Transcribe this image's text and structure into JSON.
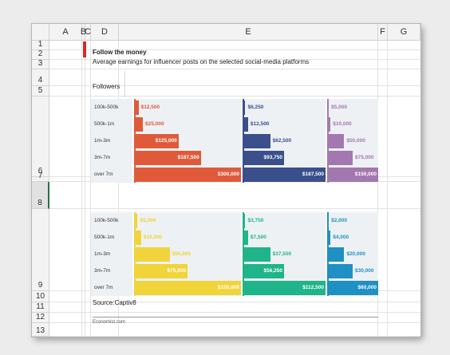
{
  "columns": [
    "A",
    "B",
    "C",
    "D",
    "E",
    "F",
    "G"
  ],
  "rows": [
    "1",
    "2",
    "3",
    "4",
    "5",
    "6",
    "7",
    "8",
    "9",
    "10",
    "11",
    "12",
    "13"
  ],
  "title": "Follow the money",
  "subtitle": "Average earnings for influencer posts on the selected social-media platforms",
  "followers_header": "Followers",
  "source": "Source:Captiv8",
  "credit": "Economist.com",
  "colors": {
    "red": "#e05a3a",
    "navy": "#3a4f8c",
    "purple": "#a378b0",
    "yellow": "#f0d43a",
    "teal": "#1fb489",
    "blue": "#1e90c4",
    "accent": "#d42a2a"
  },
  "chart_data": [
    {
      "type": "bar",
      "categories": [
        "100k-500k",
        "500k-1m",
        "1m-3m",
        "3m-7m",
        "over 7m"
      ],
      "series": [
        {
          "color": "#e05a3a",
          "values": [
            12500,
            25000,
            125000,
            187500,
            300000
          ],
          "labels": [
            "$12,500",
            "$25,000",
            "$125,000",
            "$187,500",
            "$300,000"
          ]
        },
        {
          "color": "#3a4f8c",
          "values": [
            6250,
            12500,
            62500,
            93750,
            187500
          ],
          "labels": [
            "$6,250",
            "$12,500",
            "$62,500",
            "$93,750",
            "$187,500"
          ]
        },
        {
          "color": "#a378b0",
          "values": [
            5000,
            10000,
            50000,
            75000,
            150000
          ],
          "labels": [
            "$5,000",
            "$10,000",
            "$50,000",
            "$75,000",
            "$150,000"
          ]
        }
      ]
    },
    {
      "type": "bar",
      "categories": [
        "100k-500k",
        "500k-1m",
        "1m-3m",
        "3m-7m",
        "over 7m"
      ],
      "series": [
        {
          "color": "#f0d43a",
          "values": [
            5000,
            10000,
            50000,
            75000,
            150000
          ],
          "labels": [
            "$5,000",
            "$10,000",
            "$50,000",
            "$75,000",
            "$150,000"
          ]
        },
        {
          "color": "#1fb489",
          "values": [
            3750,
            7500,
            37500,
            56250,
            112500
          ],
          "labels": [
            "$3,750",
            "$7,500",
            "$37,500",
            "$56,250",
            "$112,500"
          ]
        },
        {
          "color": "#1e90c4",
          "values": [
            2000,
            4000,
            20000,
            30000,
            60000
          ],
          "labels": [
            "$2,000",
            "$4,000",
            "$20,000",
            "$30,000",
            "$60,000"
          ]
        }
      ]
    }
  ]
}
